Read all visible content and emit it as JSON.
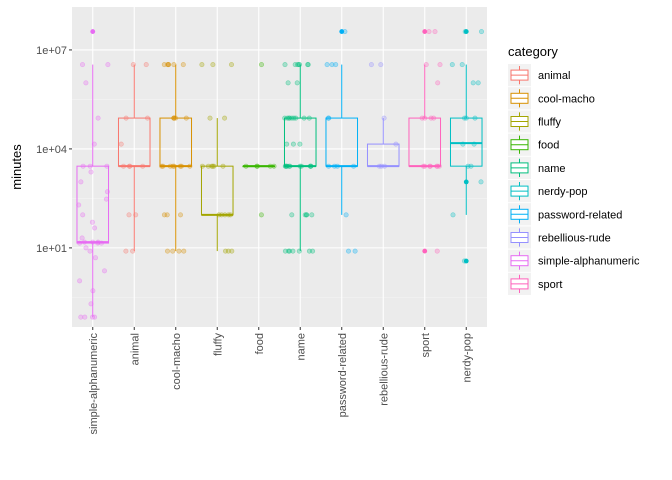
{
  "chart_data": {
    "type": "boxplot",
    "xlabel": "",
    "ylabel": "minutes",
    "y_scale": "log10",
    "ylim": [
      0.04,
      200000000
    ],
    "y_ticks": [
      10,
      10000,
      10000000
    ],
    "y_tick_labels": [
      "1e+01",
      "1e+04",
      "1e+07"
    ],
    "grid": true,
    "legend_title": "category",
    "legend_position": "right",
    "categories": [
      "simple-alphanumeric",
      "animal",
      "cool-macho",
      "fluffy",
      "food",
      "name",
      "password-related",
      "rebellious-rude",
      "sport",
      "nerdy-pop"
    ],
    "legend_order": [
      "animal",
      "cool-macho",
      "fluffy",
      "food",
      "name",
      "nerdy-pop",
      "password-related",
      "rebellious-rude",
      "simple-alphanumeric",
      "sport"
    ],
    "colors": {
      "animal": "#F8766D",
      "cool-macho": "#D89000",
      "fluffy": "#A3A500",
      "food": "#39B600",
      "name": "#00BF7D",
      "nerdy-pop": "#00BFC4",
      "password-related": "#00B0F6",
      "rebellious-rude": "#9590FF",
      "simple-alphanumeric": "#E76BF3",
      "sport": "#FF62BC"
    },
    "boxes": [
      {
        "category": "simple-alphanumeric",
        "lower_whisker": 0.08,
        "q1": 14,
        "median": 15,
        "q3": 3000,
        "upper_whisker": 3600000
      },
      {
        "category": "animal",
        "lower_whisker": 8,
        "q1": 3000,
        "median": 3000,
        "q3": 86000,
        "upper_whisker": 3600000
      },
      {
        "category": "cool-macho",
        "lower_whisker": 8,
        "q1": 3000,
        "median": 3000,
        "q3": 86000,
        "upper_whisker": 3600000
      },
      {
        "category": "fluffy",
        "lower_whisker": 8,
        "q1": 100,
        "median": 100,
        "q3": 3000,
        "upper_whisker": 86000
      },
      {
        "category": "food",
        "lower_whisker": 3000,
        "q1": 3000,
        "median": 3000,
        "q3": 3000,
        "upper_whisker": 3000
      },
      {
        "category": "name",
        "lower_whisker": 8,
        "q1": 3000,
        "median": 3000,
        "q3": 86000,
        "upper_whisker": 3600000
      },
      {
        "category": "password-related",
        "lower_whisker": 100,
        "q1": 3000,
        "median": 3000,
        "q3": 86000,
        "upper_whisker": 3600000
      },
      {
        "category": "rebellious-rude",
        "lower_whisker": 3000,
        "q1": 3000,
        "median": 3000,
        "q3": 14000,
        "upper_whisker": 86000
      },
      {
        "category": "sport",
        "lower_whisker": 3000,
        "q1": 3000,
        "median": 3000,
        "q3": 86000,
        "upper_whisker": 3600000
      },
      {
        "category": "nerdy-pop",
        "lower_whisker": 100,
        "q1": 3000,
        "median": 15000,
        "q3": 86000,
        "upper_whisker": 3600000
      }
    ],
    "outliers": [
      {
        "category": "simple-alphanumeric",
        "values": [
          36000000
        ]
      },
      {
        "category": "password-related",
        "values": [
          36000000
        ]
      },
      {
        "category": "sport",
        "values": [
          8,
          36000000
        ]
      },
      {
        "category": "nerdy-pop",
        "values": [
          4,
          1000,
          36000000
        ]
      }
    ],
    "jittered_points": [
      {
        "category": "simple-alphanumeric",
        "values": [
          0.08,
          0.08,
          0.08,
          0.08,
          0.2,
          0.5,
          1,
          2,
          5,
          8,
          10,
          14,
          14,
          14,
          15,
          15,
          15,
          20,
          40,
          60,
          100,
          200,
          300,
          500,
          1000,
          2000,
          3000,
          3000,
          3000,
          14000,
          86000,
          1000000,
          3600000,
          3600000
        ]
      },
      {
        "category": "animal",
        "values": [
          8,
          8,
          100,
          100,
          3000,
          3000,
          3000,
          3000,
          14000,
          86000,
          86000,
          3600000,
          3600000
        ]
      },
      {
        "category": "cool-macho",
        "values": [
          8,
          8,
          8,
          8,
          100,
          100,
          100,
          3000,
          3000,
          3000,
          3000,
          3000,
          3000,
          3000,
          3000,
          86000,
          86000,
          86000,
          86000,
          86000,
          3600000,
          3600000,
          3600000,
          3600000,
          3600000,
          3600000
        ]
      },
      {
        "category": "fluffy",
        "values": [
          8,
          8,
          8,
          100,
          100,
          100,
          100,
          100,
          3000,
          3000,
          3000,
          3000,
          3000,
          3000,
          86000,
          86000,
          3600000,
          3600000,
          3600000
        ]
      },
      {
        "category": "food",
        "values": [
          100,
          3000,
          3000,
          3000,
          3000,
          3000,
          3600000
        ]
      },
      {
        "category": "name",
        "values": [
          8,
          8,
          8,
          8,
          8,
          8,
          8,
          100,
          100,
          100,
          100,
          100,
          3000,
          3000,
          3000,
          3000,
          3000,
          3000,
          3000,
          3000,
          3000,
          3000,
          3000,
          14000,
          14000,
          14000,
          86000,
          86000,
          86000,
          86000,
          86000,
          86000,
          86000,
          86000,
          86000,
          1000000,
          1000000,
          3600000,
          3600000,
          3600000,
          3600000,
          3600000,
          3600000,
          3600000
        ]
      },
      {
        "category": "password-related",
        "values": [
          8,
          8,
          100,
          3000,
          3000,
          3000,
          3000,
          86000,
          86000,
          3600000,
          3600000,
          3600000,
          36000000
        ]
      },
      {
        "category": "rebellious-rude",
        "values": [
          3000,
          3000,
          3000,
          14000,
          86000,
          3600000,
          3600000
        ]
      },
      {
        "category": "sport",
        "values": [
          8,
          3000,
          3000,
          3000,
          3000,
          3000,
          3000,
          3000,
          86000,
          86000,
          86000,
          86000,
          1000000,
          3600000,
          3600000,
          36000000,
          36000000
        ]
      },
      {
        "category": "nerdy-pop",
        "values": [
          4,
          100,
          1000,
          3000,
          3000,
          14000,
          14000,
          86000,
          86000,
          86000,
          1000000,
          1000000,
          3600000,
          3600000,
          36000000,
          36000000
        ]
      }
    ]
  }
}
